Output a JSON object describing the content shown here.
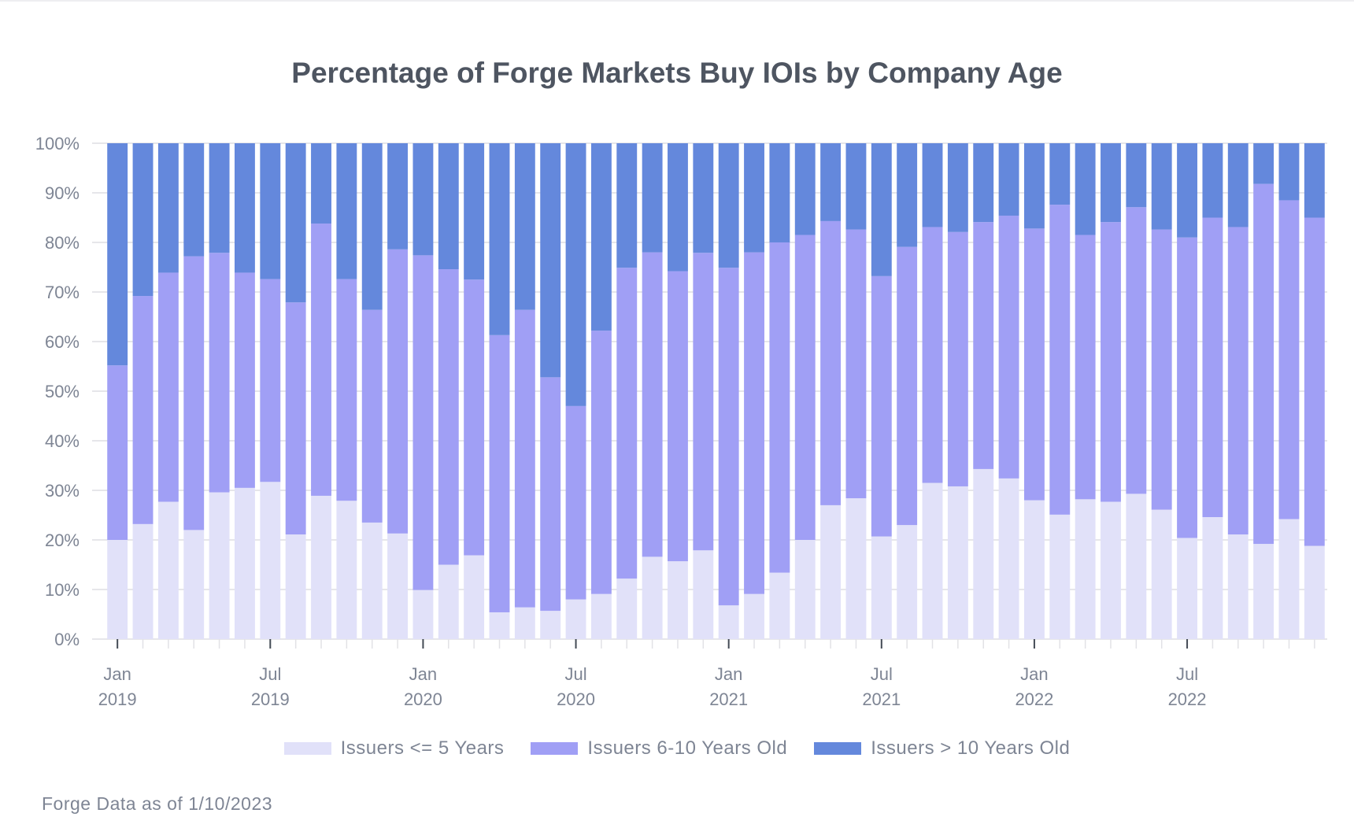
{
  "chart_data": {
    "type": "bar",
    "stacked": true,
    "title": "Percentage of Forge Markets Buy IOIs by Company Age",
    "xlabel": "",
    "ylabel": "",
    "ylim": [
      0,
      100
    ],
    "yticks": [
      "0%",
      "10%",
      "20%",
      "30%",
      "40%",
      "50%",
      "60%",
      "70%",
      "80%",
      "90%",
      "100%"
    ],
    "xtick_labels": [
      {
        "index": 0,
        "line1": "Jan",
        "line2": "2019"
      },
      {
        "index": 6,
        "line1": "Jul",
        "line2": "2019"
      },
      {
        "index": 12,
        "line1": "Jan",
        "line2": "2020"
      },
      {
        "index": 18,
        "line1": "Jul",
        "line2": "2020"
      },
      {
        "index": 24,
        "line1": "Jan",
        "line2": "2021"
      },
      {
        "index": 30,
        "line1": "Jul",
        "line2": "2021"
      },
      {
        "index": 36,
        "line1": "Jan",
        "line2": "2022"
      },
      {
        "index": 42,
        "line1": "Jul",
        "line2": "2022"
      }
    ],
    "categories": [
      "2019-01",
      "2019-02",
      "2019-03",
      "2019-04",
      "2019-05",
      "2019-06",
      "2019-07",
      "2019-08",
      "2019-09",
      "2019-10",
      "2019-11",
      "2019-12",
      "2020-01",
      "2020-02",
      "2020-03",
      "2020-04",
      "2020-05",
      "2020-06",
      "2020-07",
      "2020-08",
      "2020-09",
      "2020-10",
      "2020-11",
      "2020-12",
      "2021-01",
      "2021-02",
      "2021-03",
      "2021-04",
      "2021-05",
      "2021-06",
      "2021-07",
      "2021-08",
      "2021-09",
      "2021-10",
      "2021-11",
      "2021-12",
      "2022-01",
      "2022-02",
      "2022-03",
      "2022-04",
      "2022-05",
      "2022-06",
      "2022-07",
      "2022-08",
      "2022-09",
      "2022-10",
      "2022-11",
      "2022-12"
    ],
    "series": [
      {
        "name": "Issuers <= 5 Years",
        "color": "#e1e1f9",
        "values": [
          20.0,
          23.2,
          27.7,
          22.0,
          29.6,
          30.5,
          31.7,
          21.1,
          28.9,
          27.9,
          23.5,
          21.3,
          9.9,
          15.0,
          16.9,
          5.4,
          6.4,
          5.7,
          8.0,
          9.1,
          12.2,
          16.6,
          15.7,
          17.9,
          6.8,
          9.1,
          13.4,
          20.0,
          27.0,
          28.4,
          20.7,
          23.0,
          31.5,
          30.8,
          34.3,
          32.4,
          28.0,
          25.1,
          28.2,
          27.7,
          29.3,
          26.1,
          20.4,
          24.6,
          21.1,
          19.2,
          24.2,
          18.8
        ]
      },
      {
        "name": "Issuers 6-10 Years Old",
        "color": "#a09ff5",
        "values": [
          35.2,
          46.0,
          46.2,
          55.2,
          48.3,
          43.4,
          40.9,
          46.8,
          54.9,
          44.7,
          42.9,
          57.3,
          67.5,
          59.6,
          55.6,
          55.9,
          60.0,
          47.1,
          39.0,
          53.1,
          62.7,
          61.4,
          58.5,
          60.0,
          68.1,
          68.9,
          66.6,
          61.5,
          57.3,
          54.2,
          52.5,
          56.1,
          51.6,
          51.3,
          49.8,
          53.0,
          54.8,
          62.5,
          53.3,
          56.4,
          57.8,
          56.5,
          60.6,
          60.4,
          62.0,
          72.6,
          64.3,
          66.2
        ]
      },
      {
        "name": "Issuers > 10 Years Old",
        "color": "#6488dc",
        "values": [
          44.8,
          30.8,
          26.1,
          22.8,
          22.1,
          26.1,
          27.4,
          32.1,
          16.2,
          27.4,
          33.6,
          21.4,
          22.6,
          25.4,
          27.5,
          38.7,
          33.6,
          47.2,
          53.0,
          37.8,
          25.1,
          22.0,
          25.8,
          22.1,
          25.1,
          22.0,
          20.0,
          18.5,
          15.7,
          17.4,
          26.8,
          20.9,
          16.9,
          17.9,
          15.9,
          14.6,
          17.2,
          12.4,
          18.5,
          15.9,
          12.9,
          17.4,
          19.0,
          15.0,
          16.9,
          8.2,
          11.5,
          15.0
        ]
      }
    ],
    "grid": true,
    "legend_position": "bottom-center"
  },
  "footer": "Forge Data as of 1/10/2023"
}
